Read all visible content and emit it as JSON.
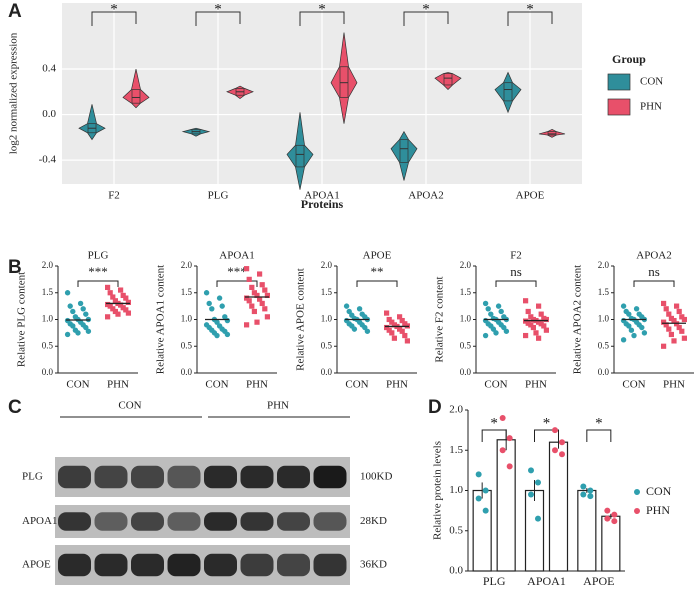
{
  "chart_data": [
    {
      "type": "violin",
      "label": "A",
      "ylabel": "log2  normalized expression",
      "xlabel": "Proteins",
      "categories": [
        "F2",
        "PLG",
        "APOA1",
        "APOA2",
        "APOE"
      ],
      "annotations": [
        "*",
        "*",
        "*",
        "*",
        "*"
      ],
      "legend_title": "Group",
      "grid": true,
      "ylim": [
        -0.61,
        0.98
      ],
      "yticks": [
        -0.4,
        {
          "value": 0,
          "label": "0.0"
        },
        0.4
      ],
      "series": [
        {
          "name": "CON",
          "color": "#2f8e9b",
          "min": [
            -0.22,
            -0.19,
            -0.66,
            -0.58,
            0.02
          ],
          "q1": [
            -0.16,
            -0.17,
            -0.46,
            -0.42,
            0.12
          ],
          "median": [
            -0.12,
            -0.15,
            -0.35,
            -0.3,
            0.22
          ],
          "q3": [
            -0.08,
            -0.13,
            -0.27,
            -0.22,
            0.28
          ],
          "max": [
            0.09,
            -0.12,
            0.02,
            -0.15,
            0.37
          ]
        },
        {
          "name": "PHN",
          "color": "#e8506a",
          "min": [
            0.06,
            0.14,
            -0.08,
            0.22,
            -0.2
          ],
          "q1": [
            0.1,
            0.17,
            0.15,
            0.26,
            -0.18
          ],
          "median": [
            0.15,
            0.2,
            0.28,
            0.32,
            -0.17
          ],
          "q3": [
            0.22,
            0.23,
            0.42,
            0.36,
            -0.15
          ],
          "max": [
            0.4,
            0.25,
            0.72,
            0.37,
            -0.13
          ]
        }
      ]
    },
    {
      "type": "strip",
      "label": "B",
      "title": "PLG",
      "ylabel": "Relative PLG content",
      "categories": [
        "CON",
        "PHN"
      ],
      "annotation": "***",
      "ylim": [
        0,
        2
      ],
      "yticks": [
        {
          "value": 0,
          "label": "0.0"
        },
        0.5,
        {
          "value": 1,
          "label": "1.0"
        },
        1.5,
        {
          "value": 2,
          "label": "2.0"
        }
      ],
      "groups": [
        {
          "color": "#2f9fae",
          "mean": 0.99,
          "values": [
            1.5,
            1.3,
            1.25,
            1.2,
            1.15,
            1.1,
            1.05,
            1.0,
            1.0,
            0.98,
            0.95,
            0.92,
            0.9,
            0.88,
            0.85,
            0.8,
            0.78,
            0.75,
            0.72
          ]
        },
        {
          "color": "#e8506a",
          "mean": 1.3,
          "values": [
            1.6,
            1.55,
            1.5,
            1.45,
            1.42,
            1.4,
            1.35,
            1.32,
            1.3,
            1.28,
            1.27,
            1.25,
            1.22,
            1.2,
            1.18,
            1.15,
            1.12,
            1.1,
            1.05
          ]
        }
      ]
    },
    {
      "type": "strip",
      "title": "APOA1",
      "ylabel": "Relative APOA1 content",
      "categories": [
        "CON",
        "PHN"
      ],
      "annotation": "***",
      "ylim": [
        0,
        2
      ],
      "yticks": [
        {
          "value": 0,
          "label": "0.0"
        },
        0.5,
        {
          "value": 1,
          "label": "1.0"
        },
        1.5,
        {
          "value": 2,
          "label": "2.0"
        }
      ],
      "groups": [
        {
          "color": "#2f9fae",
          "mean": 1.0,
          "values": [
            1.5,
            1.4,
            1.3,
            1.25,
            1.2,
            1.05,
            1.0,
            0.98,
            0.95,
            0.9,
            0.88,
            0.85,
            0.82,
            0.8,
            0.78,
            0.75,
            0.72,
            0.7
          ]
        },
        {
          "color": "#e8506a",
          "mean": 1.42,
          "values": [
            1.95,
            1.85,
            1.75,
            1.65,
            1.6,
            1.55,
            1.5,
            1.45,
            1.45,
            1.4,
            1.38,
            1.35,
            1.3,
            1.25,
            1.2,
            1.15,
            1.05,
            0.95,
            0.9
          ]
        }
      ]
    },
    {
      "type": "strip",
      "title": "APOE",
      "ylabel": "Relative APOE content",
      "categories": [
        "CON",
        "PHN"
      ],
      "annotation": "**",
      "ylim": [
        0,
        2
      ],
      "yticks": [
        {
          "value": 0,
          "label": "0.0"
        },
        0.5,
        {
          "value": 1,
          "label": "1.0"
        },
        1.5,
        {
          "value": 2,
          "label": "2.0"
        }
      ],
      "groups": [
        {
          "color": "#2f9fae",
          "mean": 1.0,
          "values": [
            1.25,
            1.2,
            1.15,
            1.1,
            1.08,
            1.05,
            1.02,
            1.0,
            1.0,
            0.98,
            0.95,
            0.92,
            0.9,
            0.88,
            0.85,
            0.82,
            0.78
          ]
        },
        {
          "color": "#e8506a",
          "mean": 0.87,
          "values": [
            1.12,
            1.05,
            1.0,
            0.98,
            0.95,
            0.92,
            0.9,
            0.88,
            0.87,
            0.85,
            0.82,
            0.8,
            0.78,
            0.75,
            0.7,
            0.65,
            0.6
          ]
        }
      ]
    },
    {
      "type": "strip",
      "title": "F2",
      "ylabel": "Relative F2 content",
      "categories": [
        "CON",
        "PHN"
      ],
      "annotation": "ns",
      "ylim": [
        0,
        2
      ],
      "yticks": [
        {
          "value": 0,
          "label": "0.0"
        },
        0.5,
        {
          "value": 1,
          "label": "1.0"
        },
        1.5,
        {
          "value": 2,
          "label": "2.0"
        }
      ],
      "groups": [
        {
          "color": "#2f9fae",
          "mean": 1.0,
          "values": [
            1.3,
            1.25,
            1.2,
            1.15,
            1.1,
            1.05,
            1.02,
            1.0,
            1.0,
            0.98,
            0.95,
            0.92,
            0.9,
            0.88,
            0.85,
            0.82,
            0.78,
            0.75,
            0.7
          ]
        },
        {
          "color": "#e8506a",
          "mean": 0.98,
          "values": [
            1.35,
            1.25,
            1.15,
            1.1,
            1.05,
            1.02,
            1.0,
            1.0,
            0.98,
            0.97,
            0.95,
            0.93,
            0.92,
            0.9,
            0.88,
            0.85,
            0.8,
            0.75,
            0.7,
            0.65
          ]
        }
      ]
    },
    {
      "type": "strip",
      "title": "APOA2",
      "ylabel": "Relative APOA2 content",
      "categories": [
        "CON",
        "PHN"
      ],
      "annotation": "ns",
      "ylim": [
        0,
        2
      ],
      "yticks": [
        {
          "value": 0,
          "label": "0.0"
        },
        0.5,
        {
          "value": 1,
          "label": "1.0"
        },
        1.5,
        {
          "value": 2,
          "label": "2.0"
        }
      ],
      "groups": [
        {
          "color": "#2f9fae",
          "mean": 1.0,
          "values": [
            1.25,
            1.2,
            1.15,
            1.1,
            1.1,
            1.05,
            1.02,
            1.0,
            1.0,
            0.98,
            0.95,
            0.92,
            0.9,
            0.88,
            0.85,
            0.8,
            0.75,
            0.7,
            0.62
          ]
        },
        {
          "color": "#e8506a",
          "mean": 0.93,
          "values": [
            1.3,
            1.25,
            1.2,
            1.15,
            1.1,
            1.05,
            1.02,
            1.0,
            0.98,
            0.95,
            0.92,
            0.9,
            0.85,
            0.82,
            0.78,
            0.72,
            0.65,
            0.6,
            0.5
          ]
        }
      ]
    },
    {
      "type": "bar",
      "label": "D",
      "ylabel": "Relative protein levels",
      "categories": [
        "PLG",
        "APOA1",
        "APOE"
      ],
      "annotations": [
        "*",
        "*",
        "*"
      ],
      "ylim": [
        0,
        2
      ],
      "yticks": [
        {
          "value": 0,
          "label": "0.0"
        },
        0.5,
        {
          "value": 1,
          "label": "1.0"
        },
        1.5,
        {
          "value": 2,
          "label": "2.0"
        }
      ],
      "series": [
        {
          "name": "CON",
          "color": "#2f9fae",
          "values": [
            1.0,
            1.0,
            1.0
          ],
          "errors": [
            0.1,
            0.13,
            0.03
          ],
          "points": [
            [
              1.2,
              1.0,
              0.9,
              0.75
            ],
            [
              1.25,
              1.1,
              0.95,
              0.65
            ],
            [
              1.05,
              1.0,
              0.95,
              0.93
            ]
          ]
        },
        {
          "name": "PHN",
          "color": "#e8506a",
          "values": [
            1.63,
            1.6,
            0.68
          ],
          "errors": [
            0.13,
            0.08,
            0.03
          ],
          "points": [
            [
              1.9,
              1.65,
              1.5,
              1.3
            ],
            [
              1.75,
              1.6,
              1.5,
              1.45
            ],
            [
              0.75,
              0.7,
              0.65,
              0.62
            ]
          ]
        }
      ]
    }
  ],
  "blot": {
    "label": "C",
    "groups": [
      "CON",
      "PHN"
    ],
    "rows": [
      {
        "name": "PLG",
        "size": "100KD"
      },
      {
        "name": "APOA1",
        "size": "28KD"
      },
      {
        "name": "APOE",
        "size": "36KD"
      }
    ]
  }
}
